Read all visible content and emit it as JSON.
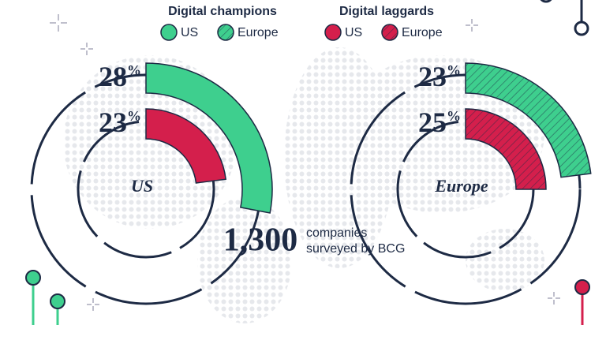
{
  "chart_data": {
    "type": "radial-bar",
    "ylim": [
      0,
      100
    ],
    "unit": "%",
    "categories": [
      "US",
      "Europe"
    ],
    "hatched": [
      false,
      true
    ],
    "series": [
      {
        "name": "Digital champions",
        "color": "#3ecf8e",
        "values": [
          28,
          23
        ]
      },
      {
        "name": "Digital laggards",
        "color": "#d41f4c",
        "values": [
          23,
          25
        ]
      }
    ],
    "annotation": {
      "figure": "1,300",
      "text_lines": [
        "companies",
        "surveyed by BCG"
      ]
    }
  }
}
